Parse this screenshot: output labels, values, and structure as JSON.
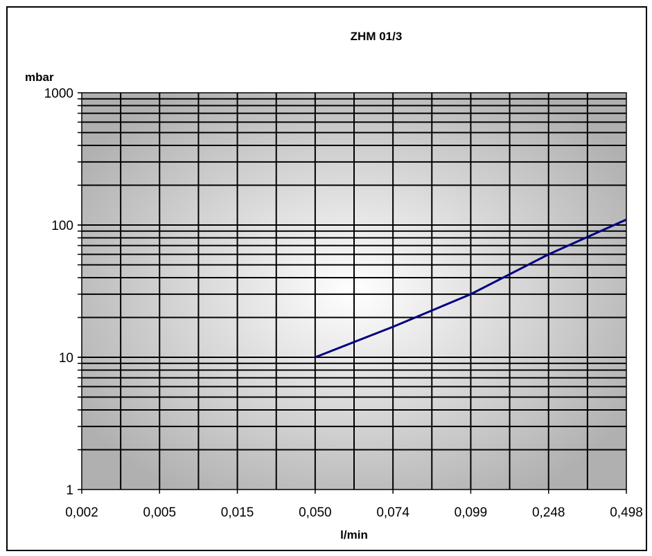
{
  "chart_data": {
    "type": "line",
    "title": "ZHM 01/3",
    "ylabel": "mbar",
    "xlabel": "l/min",
    "yscale": "log",
    "ylim": [
      1,
      1000
    ],
    "y_ticks": [
      "1",
      "10",
      "100",
      "1000"
    ],
    "x_ticks": [
      "0,002",
      "0,005",
      "0,015",
      "0,050",
      "0,074",
      "0,099",
      "0,248",
      "0,498"
    ],
    "grid": true,
    "legend": "none",
    "series": [
      {
        "x": [
          "0,050",
          "0,074",
          "0,099",
          "0,248",
          "0,498"
        ],
        "y": [
          10,
          17,
          30,
          60,
          110
        ]
      }
    ],
    "colors": {
      "line": "#000080",
      "gridline": "#000000",
      "plot_center": "#ffffff",
      "plot_edge": "#b0b0b0"
    }
  }
}
